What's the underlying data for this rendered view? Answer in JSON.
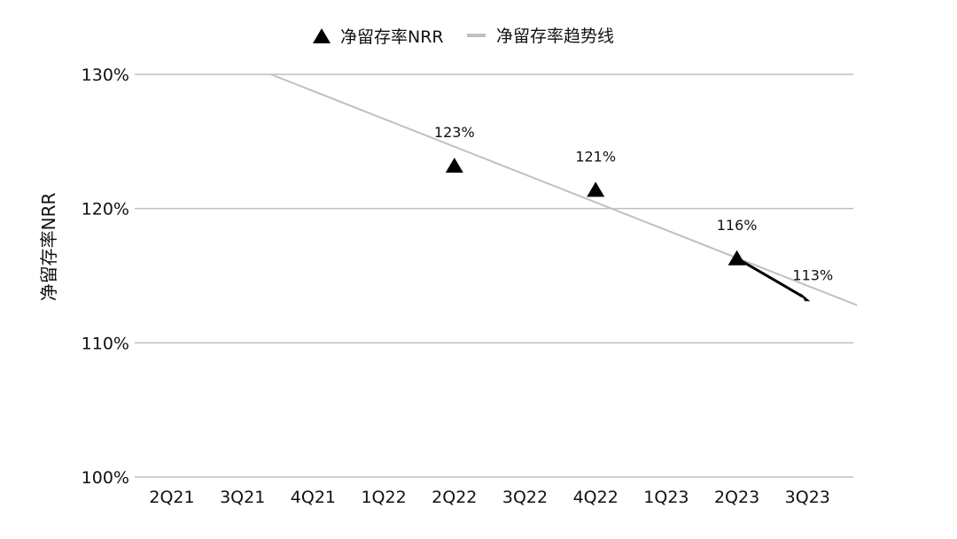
{
  "chart_data": {
    "type": "scatter",
    "ylabel": "净留存率NRR",
    "xlabel": "",
    "categories": [
      "2Q21",
      "3Q21",
      "4Q21",
      "1Q22",
      "2Q22",
      "3Q22",
      "4Q22",
      "1Q23",
      "2Q23",
      "3Q23"
    ],
    "ylim": [
      100,
      130
    ],
    "yticks": [
      "100%",
      "110%",
      "120%",
      "130%"
    ],
    "grid": true,
    "legend_position": "top-center",
    "series": [
      {
        "name": "净留存率NRR",
        "marker": "triangle",
        "color": "#000000",
        "points": [
          {
            "x": "2Q22",
            "y": 123.2,
            "label": "123%"
          },
          {
            "x": "4Q22",
            "y": 121.4,
            "label": "121%"
          },
          {
            "x": "2Q23",
            "y": 116.3,
            "label": "116%"
          },
          {
            "x": "3Q23",
            "y": 113.3,
            "label": "113%",
            "marker": "arrow"
          }
        ]
      },
      {
        "name": "净留存率趋势线",
        "type": "line",
        "color": "#c0c0c0",
        "points": [
          {
            "x": 1.4,
            "y": 130
          },
          {
            "x": 9.7,
            "y": 112.8
          }
        ]
      }
    ],
    "colors": {
      "grid": "#bfbfbf",
      "marker": "#000000",
      "trend": "#c0c0c0"
    }
  }
}
